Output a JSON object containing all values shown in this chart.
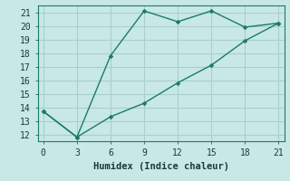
{
  "xlabel": "Humidex (Indice chaleur)",
  "bg_color": "#c8e8e5",
  "grid_color": "#aacfcc",
  "line_color": "#1a7a6e",
  "line1_x": [
    0,
    3,
    6,
    9,
    12,
    15,
    18,
    21
  ],
  "line1_y": [
    13.7,
    11.8,
    17.8,
    21.1,
    20.3,
    21.1,
    19.9,
    20.2
  ],
  "line2_x": [
    0,
    3,
    6,
    9,
    12,
    15,
    18,
    21
  ],
  "line2_y": [
    13.7,
    11.8,
    13.3,
    14.3,
    15.8,
    17.1,
    18.9,
    20.2
  ],
  "xlim": [
    -0.5,
    21.5
  ],
  "ylim": [
    11.5,
    21.5
  ],
  "xticks": [
    0,
    3,
    6,
    9,
    12,
    15,
    18,
    21
  ],
  "yticks": [
    12,
    13,
    14,
    15,
    16,
    17,
    18,
    19,
    20,
    21
  ],
  "xlabel_fontsize": 7.5,
  "tick_fontsize": 7.0
}
